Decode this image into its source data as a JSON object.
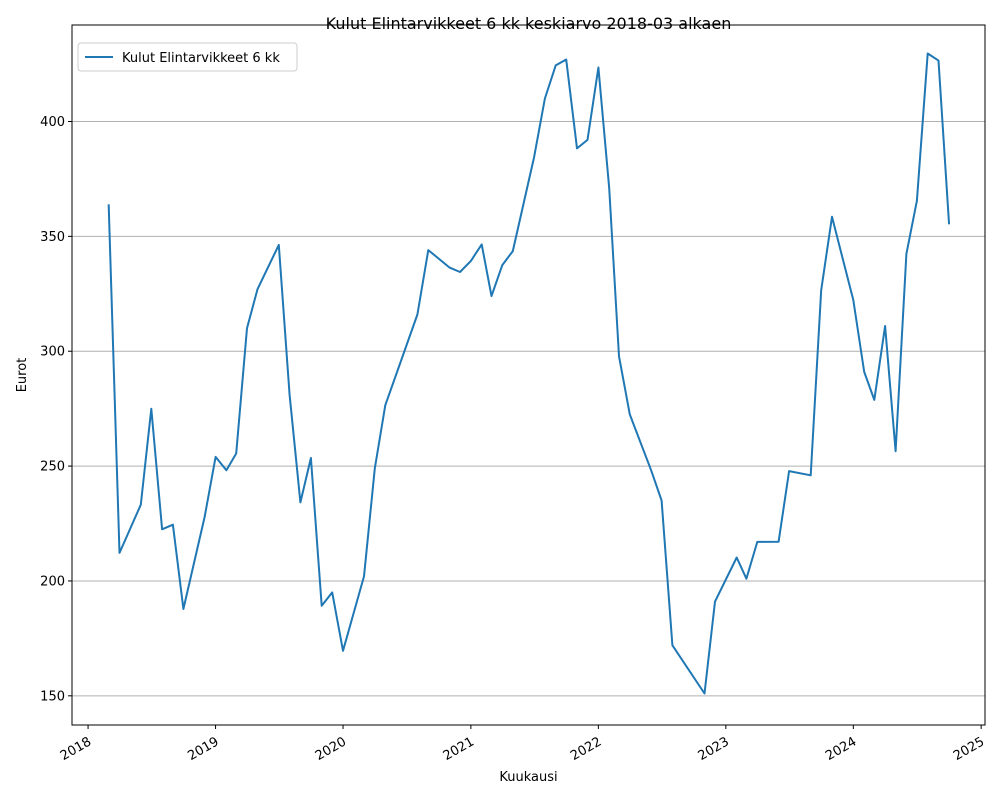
{
  "chart_data": {
    "type": "line",
    "title": "Kulut Elintarvikkeet 6 kk keskiarvo 2018-03 alkaen",
    "xlabel": "Kuukausi",
    "ylabel": "Eurot",
    "x_ticks": [
      "2018",
      "2019",
      "2020",
      "2021",
      "2022",
      "2023",
      "2024",
      "2025"
    ],
    "y_ticks": [
      150,
      200,
      250,
      300,
      350,
      400
    ],
    "xlim": [
      "2017-11-16",
      "2025-01-12"
    ],
    "ylim": [
      137.3,
      442
    ],
    "grid": "horizontal",
    "legend": "upper-left",
    "colors": {
      "line": "#1f77b4",
      "grid": "#b0b0b0"
    },
    "series": [
      {
        "name": "Kulut Elintarvikkeet 6 kk",
        "x": [
          "2018-03",
          "2018-04",
          "2018-06",
          "2018-07",
          "2018-08",
          "2018-09",
          "2018-10",
          "2018-12",
          "2019-01",
          "2019-02",
          "2019-03",
          "2019-04",
          "2019-05",
          "2019-07",
          "2019-08",
          "2019-09",
          "2019-10",
          "2019-11",
          "2019-12",
          "2020-01",
          "2020-03",
          "2020-04",
          "2020-05",
          "2020-08",
          "2020-09",
          "2020-11",
          "2020-12",
          "2021-01",
          "2021-02",
          "2021-03",
          "2021-04",
          "2021-05",
          "2021-07",
          "2021-08",
          "2021-09",
          "2021-10",
          "2021-11",
          "2021-12",
          "2022-01",
          "2022-02",
          "2022-03",
          "2022-04",
          "2022-06",
          "2022-07",
          "2022-08",
          "2022-11",
          "2022-12",
          "2023-02",
          "2023-03",
          "2023-04",
          "2023-06",
          "2023-07",
          "2023-09",
          "2023-10",
          "2023-11",
          "2024-01",
          "2024-02",
          "2024-03",
          "2024-04",
          "2024-05",
          "2024-06",
          "2024-07",
          "2024-08",
          "2024-09",
          "2024-10"
        ],
        "values": [
          363.5,
          212.2,
          233.2,
          275.0,
          222.5,
          224.5,
          187.8,
          228.0,
          254.0,
          248.2,
          255.5,
          310.0,
          327.0,
          346.3,
          281.0,
          234.2,
          253.5,
          189.2,
          195.0,
          169.6,
          202.0,
          249.0,
          276.5,
          316.0,
          344.0,
          336.4,
          334.5,
          339.3,
          346.5,
          324.0,
          337.5,
          343.6,
          384.5,
          410.0,
          424.4,
          427.0,
          388.3,
          392.0,
          423.5,
          371.0,
          297.8,
          272.5,
          248.2,
          235.0,
          172.0,
          151.0,
          191.0,
          210.2,
          201.0,
          217.0,
          217.1,
          247.8,
          246.0,
          326.6,
          358.5,
          322.3,
          291.0,
          278.8,
          311.0,
          256.5,
          342.4,
          365.5,
          429.6,
          426.5,
          355.7
        ]
      }
    ]
  }
}
